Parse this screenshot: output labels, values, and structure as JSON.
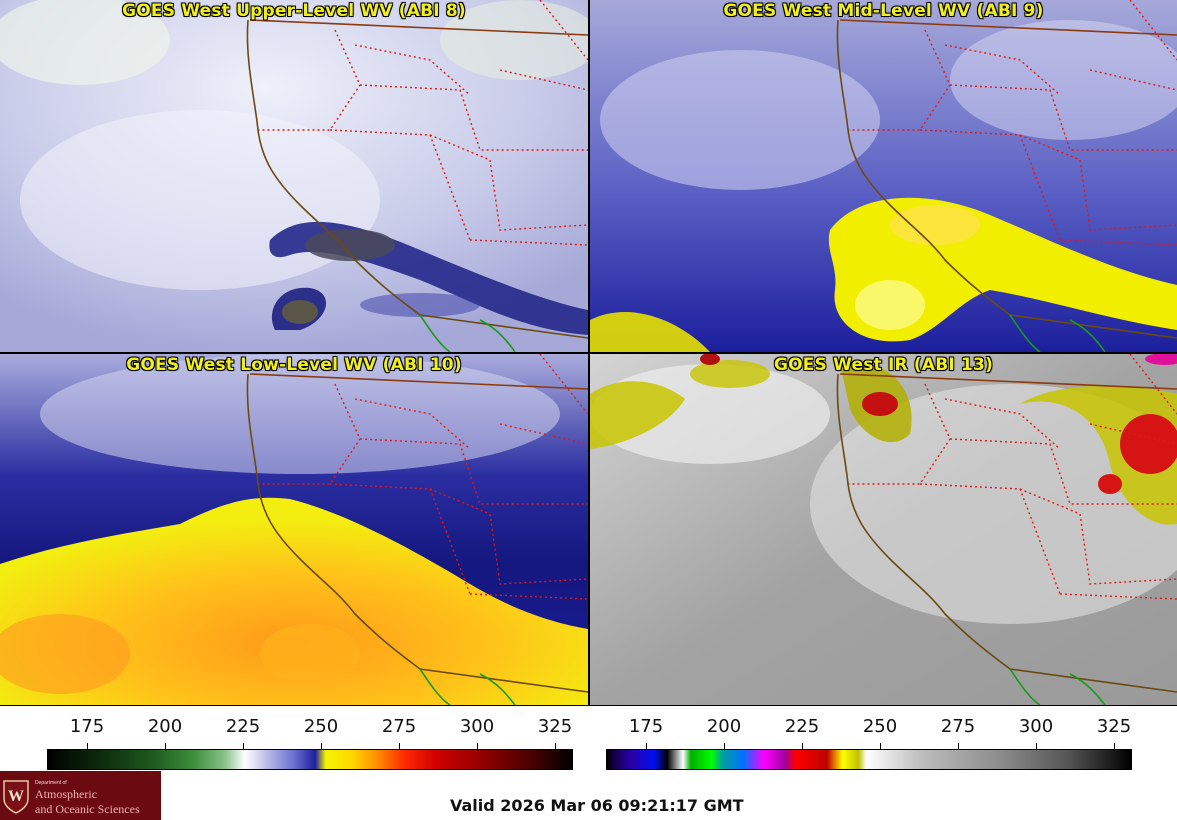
{
  "panels": [
    {
      "title": "GOES West Upper-Level WV (ABI 8)",
      "palette": "wv_upper"
    },
    {
      "title": "GOES West Mid-Level WV (ABI 9)",
      "palette": "wv_mid"
    },
    {
      "title": "GOES West Low-Level WV (ABI 10)",
      "palette": "wv_low"
    },
    {
      "title": "GOES West IR (ABI 13)",
      "palette": "ir_gray"
    }
  ],
  "colorbars": [
    {
      "ticks": [
        "175",
        "200",
        "225",
        "250",
        "275",
        "300",
        "325"
      ]
    },
    {
      "ticks": [
        "175",
        "200",
        "225",
        "250",
        "275",
        "300",
        "325"
      ]
    }
  ],
  "logo": {
    "dept": "Department of",
    "line1": "Atmospheric",
    "line2": "and Oceanic Sciences"
  },
  "valid_time": "Valid 2026 Mar 06 09:21:17 GMT",
  "colors": {
    "title": "#f2ef1e",
    "state_borders": "#e01818",
    "coastline": "#6b4a12",
    "mexico_coast": "#1a9a1a",
    "logo_bg": "#6b0a10"
  }
}
